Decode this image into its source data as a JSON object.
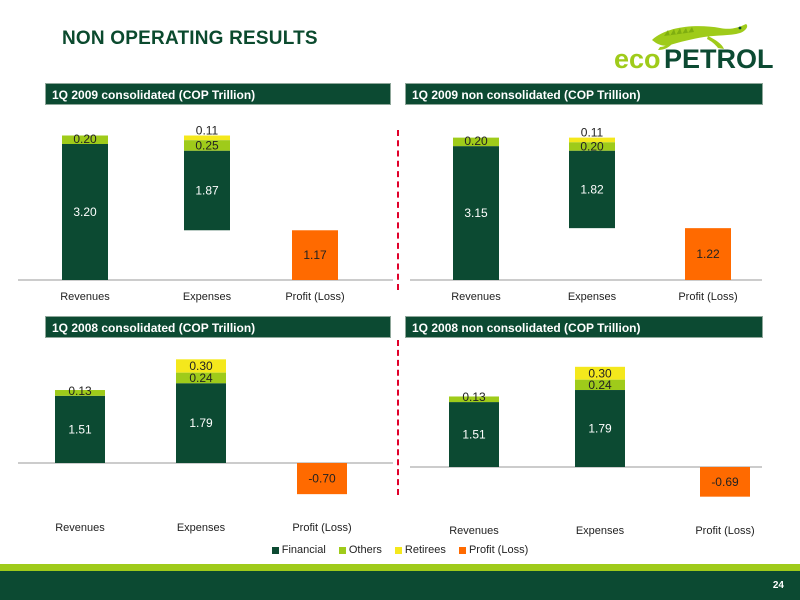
{
  "page": {
    "title": "NON OPERATING RESULTS",
    "page_number": "24",
    "logo_text": "ecopetrol"
  },
  "colors": {
    "Financial": "#0c4a32",
    "Others": "#9fcb1a",
    "Retirees": "#f4e81c",
    "Profit (Loss)": "#ff6a00",
    "header_bg": "#0c4a32",
    "divider": "#e0002a"
  },
  "legend": [
    "Financial",
    "Others",
    "Retirees",
    "Profit (Loss)"
  ],
  "chart_data": [
    {
      "type": "bar",
      "subtype": "waterfall",
      "title": "1Q  2009 consolidated  (COP Trillion)",
      "categories": [
        "Revenues",
        "Expenses",
        "Profit (Loss)"
      ],
      "series": [
        {
          "name": "Financial",
          "values": [
            3.2,
            1.87,
            null
          ]
        },
        {
          "name": "Others",
          "values": [
            0.2,
            0.25,
            null
          ]
        },
        {
          "name": "Retirees",
          "values": [
            null,
            0.11,
            null
          ]
        },
        {
          "name": "Profit (Loss)",
          "values": [
            null,
            null,
            1.17
          ]
        }
      ]
    },
    {
      "type": "bar",
      "subtype": "waterfall",
      "title": "1Q  2009 non consolidated (COP  Trillion)",
      "categories": [
        "Revenues",
        "Expenses",
        "Profit (Loss)"
      ],
      "series": [
        {
          "name": "Financial",
          "values": [
            3.15,
            1.82,
            null
          ]
        },
        {
          "name": "Others",
          "values": [
            0.2,
            0.2,
            null
          ]
        },
        {
          "name": "Retirees",
          "values": [
            null,
            0.11,
            null
          ]
        },
        {
          "name": "Profit (Loss)",
          "values": [
            null,
            null,
            1.22
          ]
        }
      ]
    },
    {
      "type": "bar",
      "subtype": "waterfall",
      "title": "1Q  2008 consolidated (COP Trillion)",
      "categories": [
        "Revenues",
        "Expenses",
        "Profit (Loss)"
      ],
      "series": [
        {
          "name": "Financial",
          "values": [
            1.51,
            1.79,
            null
          ]
        },
        {
          "name": "Others",
          "values": [
            0.13,
            0.24,
            null
          ]
        },
        {
          "name": "Retirees",
          "values": [
            null,
            0.3,
            null
          ]
        },
        {
          "name": "Profit (Loss)",
          "values": [
            null,
            null,
            -0.7
          ]
        }
      ]
    },
    {
      "type": "bar",
      "subtype": "waterfall",
      "title": "1Q 2008 non consolidated (COP Trillion)",
      "categories": [
        "Revenues",
        "Expenses",
        "Profit (Loss)"
      ],
      "series": [
        {
          "name": "Financial",
          "values": [
            1.51,
            1.79,
            null
          ]
        },
        {
          "name": "Others",
          "values": [
            0.13,
            0.24,
            null
          ]
        },
        {
          "name": "Retirees",
          "values": [
            null,
            0.3,
            null
          ]
        },
        {
          "name": "Profit (Loss)",
          "values": [
            null,
            null,
            -0.69
          ]
        }
      ]
    }
  ]
}
